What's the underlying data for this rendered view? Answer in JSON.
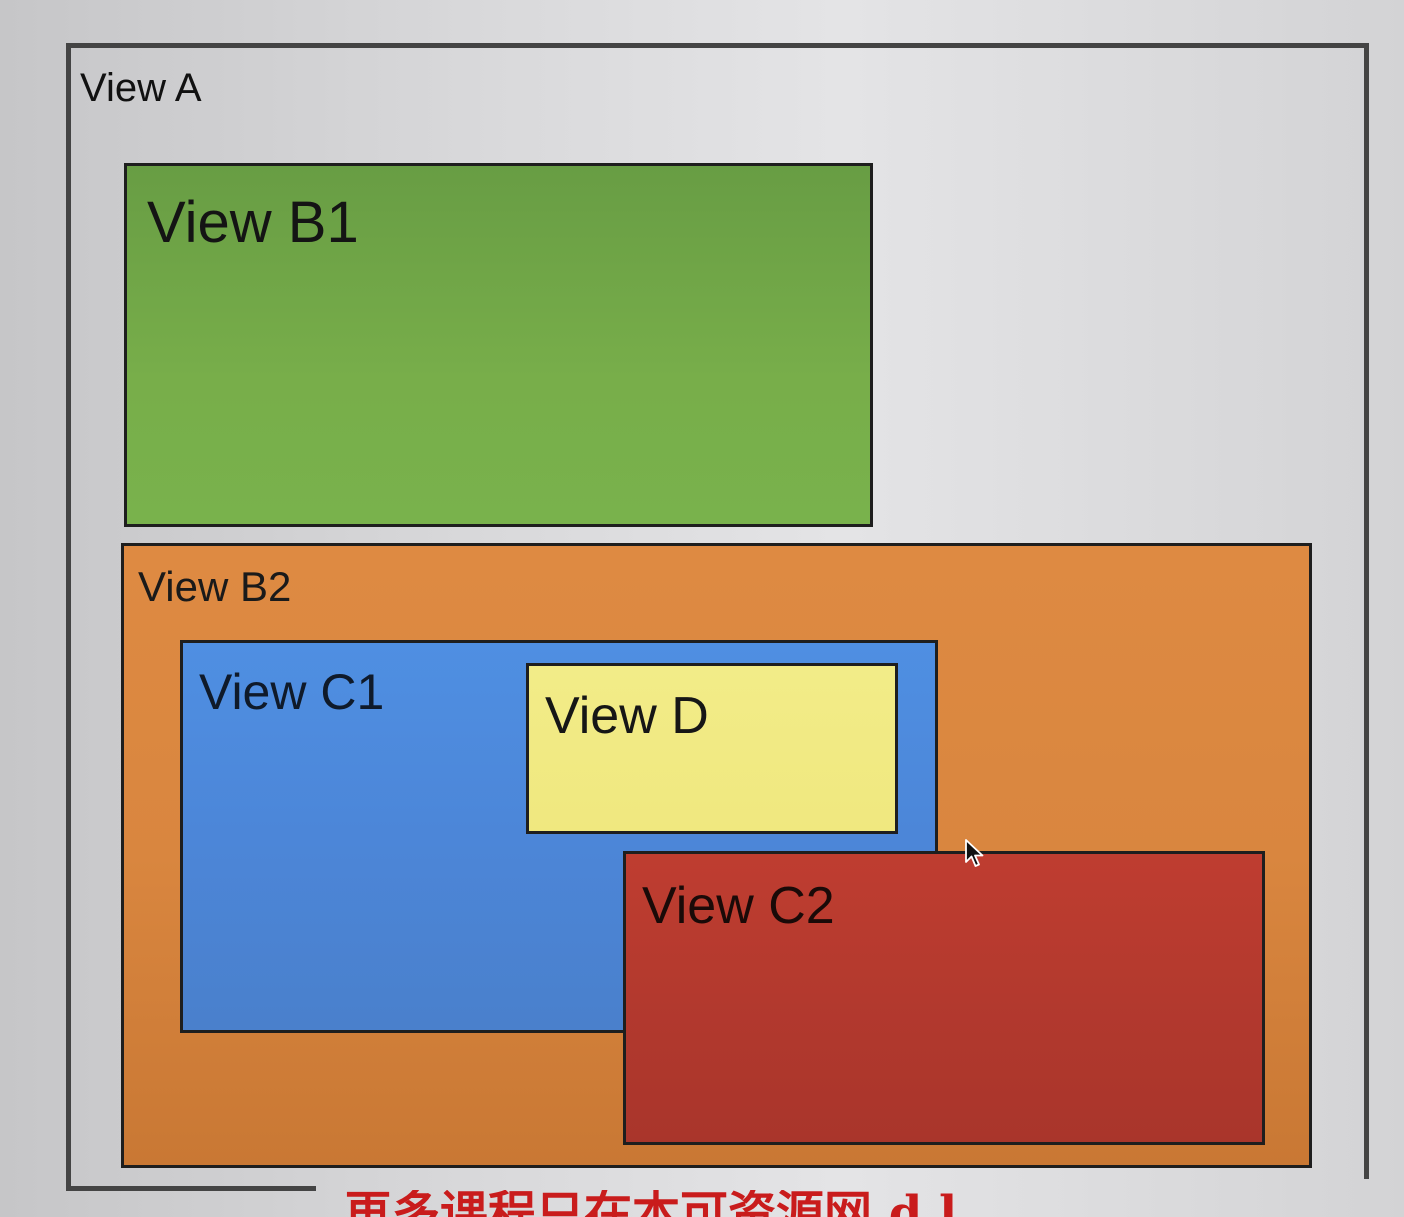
{
  "views": {
    "a": "View A",
    "b1": "View B1",
    "b2": "View B2",
    "c1": "View C1",
    "d": "View D",
    "c2": "View C2"
  },
  "caption": "再多课程只在本可资源网 d.l",
  "colors": {
    "background": "#d9d9db",
    "frame": "#444444",
    "view_b1": "#75aa48",
    "view_b2": "#d9863f",
    "view_c1": "#4c86d8",
    "view_d": "#f0e87f",
    "view_c2": "#b3392e",
    "caption": "#c91c1c"
  },
  "icons": {
    "pointer": "mouse-pointer-icon"
  }
}
